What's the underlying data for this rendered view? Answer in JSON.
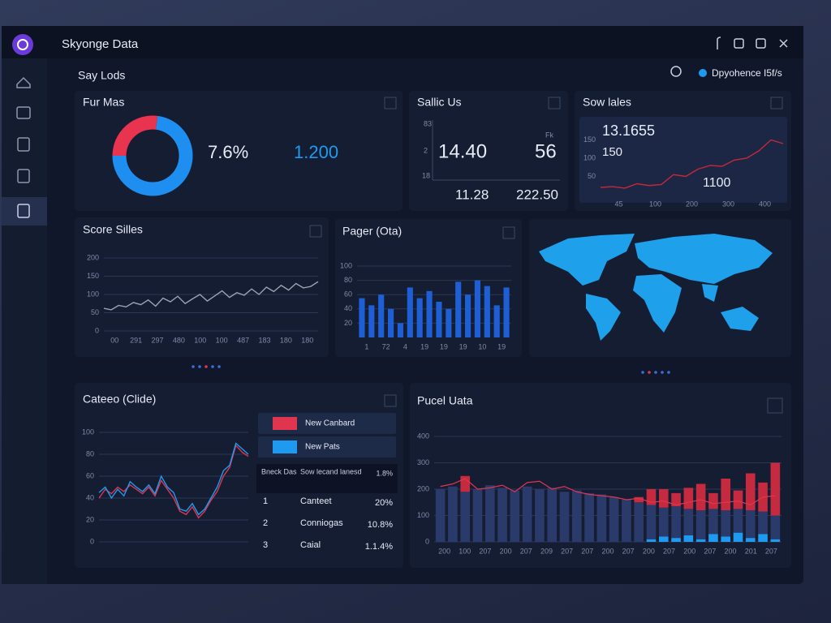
{
  "window": {
    "title": "Skyonge Data",
    "section": "Say Lods",
    "status": "Dpyohence I5f/s"
  },
  "donut": {
    "title": "Fur Mas",
    "stat_a": "7.6%",
    "stat_b": "1.200",
    "chart": {
      "type": "donut",
      "values": [
        27,
        73
      ],
      "colors": [
        "#e8344e",
        "#1e8ff0"
      ]
    }
  },
  "sales": {
    "title": "Sallic Us",
    "unit": "Fk",
    "kpis": [
      "14.40",
      "56",
      "11.28",
      "222.50"
    ],
    "ticks": [
      "83",
      "2",
      "18"
    ]
  },
  "sow": {
    "title": "Sow lales",
    "labels": [
      "13.1655",
      "150",
      "1100"
    ],
    "chart": {
      "type": "line",
      "ylim": [
        0,
        200
      ],
      "yticks": [
        50,
        100,
        150
      ],
      "grid": false,
      "xlabels": [
        "45",
        "100",
        "200",
        "300",
        "400"
      ],
      "series": [
        {
          "color": "#c4283a",
          "values": [
            20,
            22,
            18,
            30,
            25,
            28,
            55,
            50,
            70,
            80,
            78,
            95,
            100,
            120,
            150,
            140
          ]
        }
      ]
    }
  },
  "score": {
    "title": "Score Silles",
    "chart": {
      "type": "line",
      "ylim": [
        0,
        200
      ],
      "yticks": [
        0,
        50,
        100,
        150,
        200
      ],
      "grid": true,
      "xlabels": [
        "00",
        "291",
        "297",
        "480",
        "100",
        "100",
        "487",
        "183",
        "180",
        "180"
      ],
      "series": [
        {
          "color": "#9aa3b5",
          "values": [
            62,
            58,
            70,
            66,
            78,
            72,
            85,
            68,
            90,
            80,
            95,
            75,
            88,
            100,
            82,
            96,
            110,
            92,
            105,
            98,
            115,
            100,
            120,
            108,
            125,
            112,
            130,
            118,
            122,
            135
          ]
        }
      ]
    }
  },
  "pager": {
    "title": "Pager (Ota)",
    "chart": {
      "type": "bar",
      "ylim": [
        0,
        100
      ],
      "yticks": [
        20,
        40,
        60,
        80,
        100
      ],
      "grid": true,
      "color": "#1f5fd6",
      "xlabels": [
        "1",
        "72",
        "4",
        "19",
        "19",
        "19",
        "10",
        "19"
      ],
      "values": [
        55,
        45,
        60,
        40,
        20,
        70,
        55,
        65,
        50,
        40,
        78,
        60,
        80,
        72,
        45,
        70
      ]
    }
  },
  "cateeo": {
    "title": "Cateeo (Clide)",
    "table": {
      "header": [
        "Bneck Das",
        "Sow lecand lanesd",
        "1.8%"
      ],
      "rows": [
        [
          "1",
          "Canteet",
          "20%"
        ],
        [
          "2",
          "Conniogas",
          "10.8%"
        ],
        [
          "3",
          "Caial",
          "1.1.4%"
        ]
      ]
    },
    "chart": {
      "type": "line",
      "ylim": [
        0,
        100
      ],
      "yticks": [
        0,
        20,
        40,
        60,
        80,
        100
      ],
      "grid": true,
      "series": [
        {
          "name": "New Canbard",
          "color": "#e0354f",
          "values": [
            40,
            48,
            44,
            50,
            46,
            52,
            48,
            44,
            50,
            42,
            56,
            48,
            40,
            28,
            25,
            32,
            22,
            28,
            38,
            46,
            60,
            68,
            88,
            82,
            78
          ]
        },
        {
          "name": "New Pats",
          "color": "#1e9bf0",
          "values": [
            45,
            50,
            40,
            48,
            42,
            55,
            50,
            46,
            52,
            44,
            60,
            50,
            45,
            30,
            28,
            35,
            25,
            30,
            40,
            50,
            65,
            70,
            90,
            85,
            80
          ]
        }
      ]
    }
  },
  "pucel": {
    "title": "Pucel Uata",
    "chart": {
      "type": "stacked_bar",
      "ylim": [
        0,
        400
      ],
      "yticks": [
        0,
        100,
        200,
        300,
        400
      ],
      "grid": true,
      "xlabels": [
        "200",
        "100",
        "207",
        "200",
        "207",
        "209",
        "207",
        "207",
        "200",
        "207",
        "200",
        "207",
        "200",
        "207",
        "200",
        "201",
        "207"
      ],
      "series": [
        {
          "color": "#1e9bf0",
          "values": [
            0,
            0,
            0,
            0,
            0,
            0,
            0,
            0,
            0,
            0,
            0,
            0,
            0,
            0,
            0,
            0,
            0,
            10,
            20,
            15,
            25,
            10,
            30,
            20,
            35,
            15,
            30,
            10
          ]
        },
        {
          "color": "#2a3b6b",
          "values": [
            200,
            210,
            190,
            200,
            215,
            205,
            195,
            210,
            200,
            205,
            190,
            195,
            185,
            180,
            170,
            160,
            150,
            130,
            110,
            120,
            100,
            110,
            95,
            100,
            90,
            105,
            85,
            90
          ]
        },
        {
          "color": "#c52a3f",
          "values": [
            0,
            0,
            60,
            0,
            0,
            0,
            0,
            0,
            0,
            0,
            0,
            0,
            0,
            0,
            0,
            0,
            20,
            60,
            70,
            50,
            80,
            100,
            60,
            120,
            70,
            140,
            110,
            200
          ]
        }
      ],
      "line": {
        "color": "#e0354f",
        "values": [
          210,
          220,
          240,
          200,
          205,
          215,
          190,
          225,
          230,
          200,
          210,
          190,
          180,
          175,
          170,
          160,
          165,
          150,
          155,
          140,
          150,
          160,
          145,
          150,
          155,
          140,
          170,
          175
        ]
      }
    }
  }
}
